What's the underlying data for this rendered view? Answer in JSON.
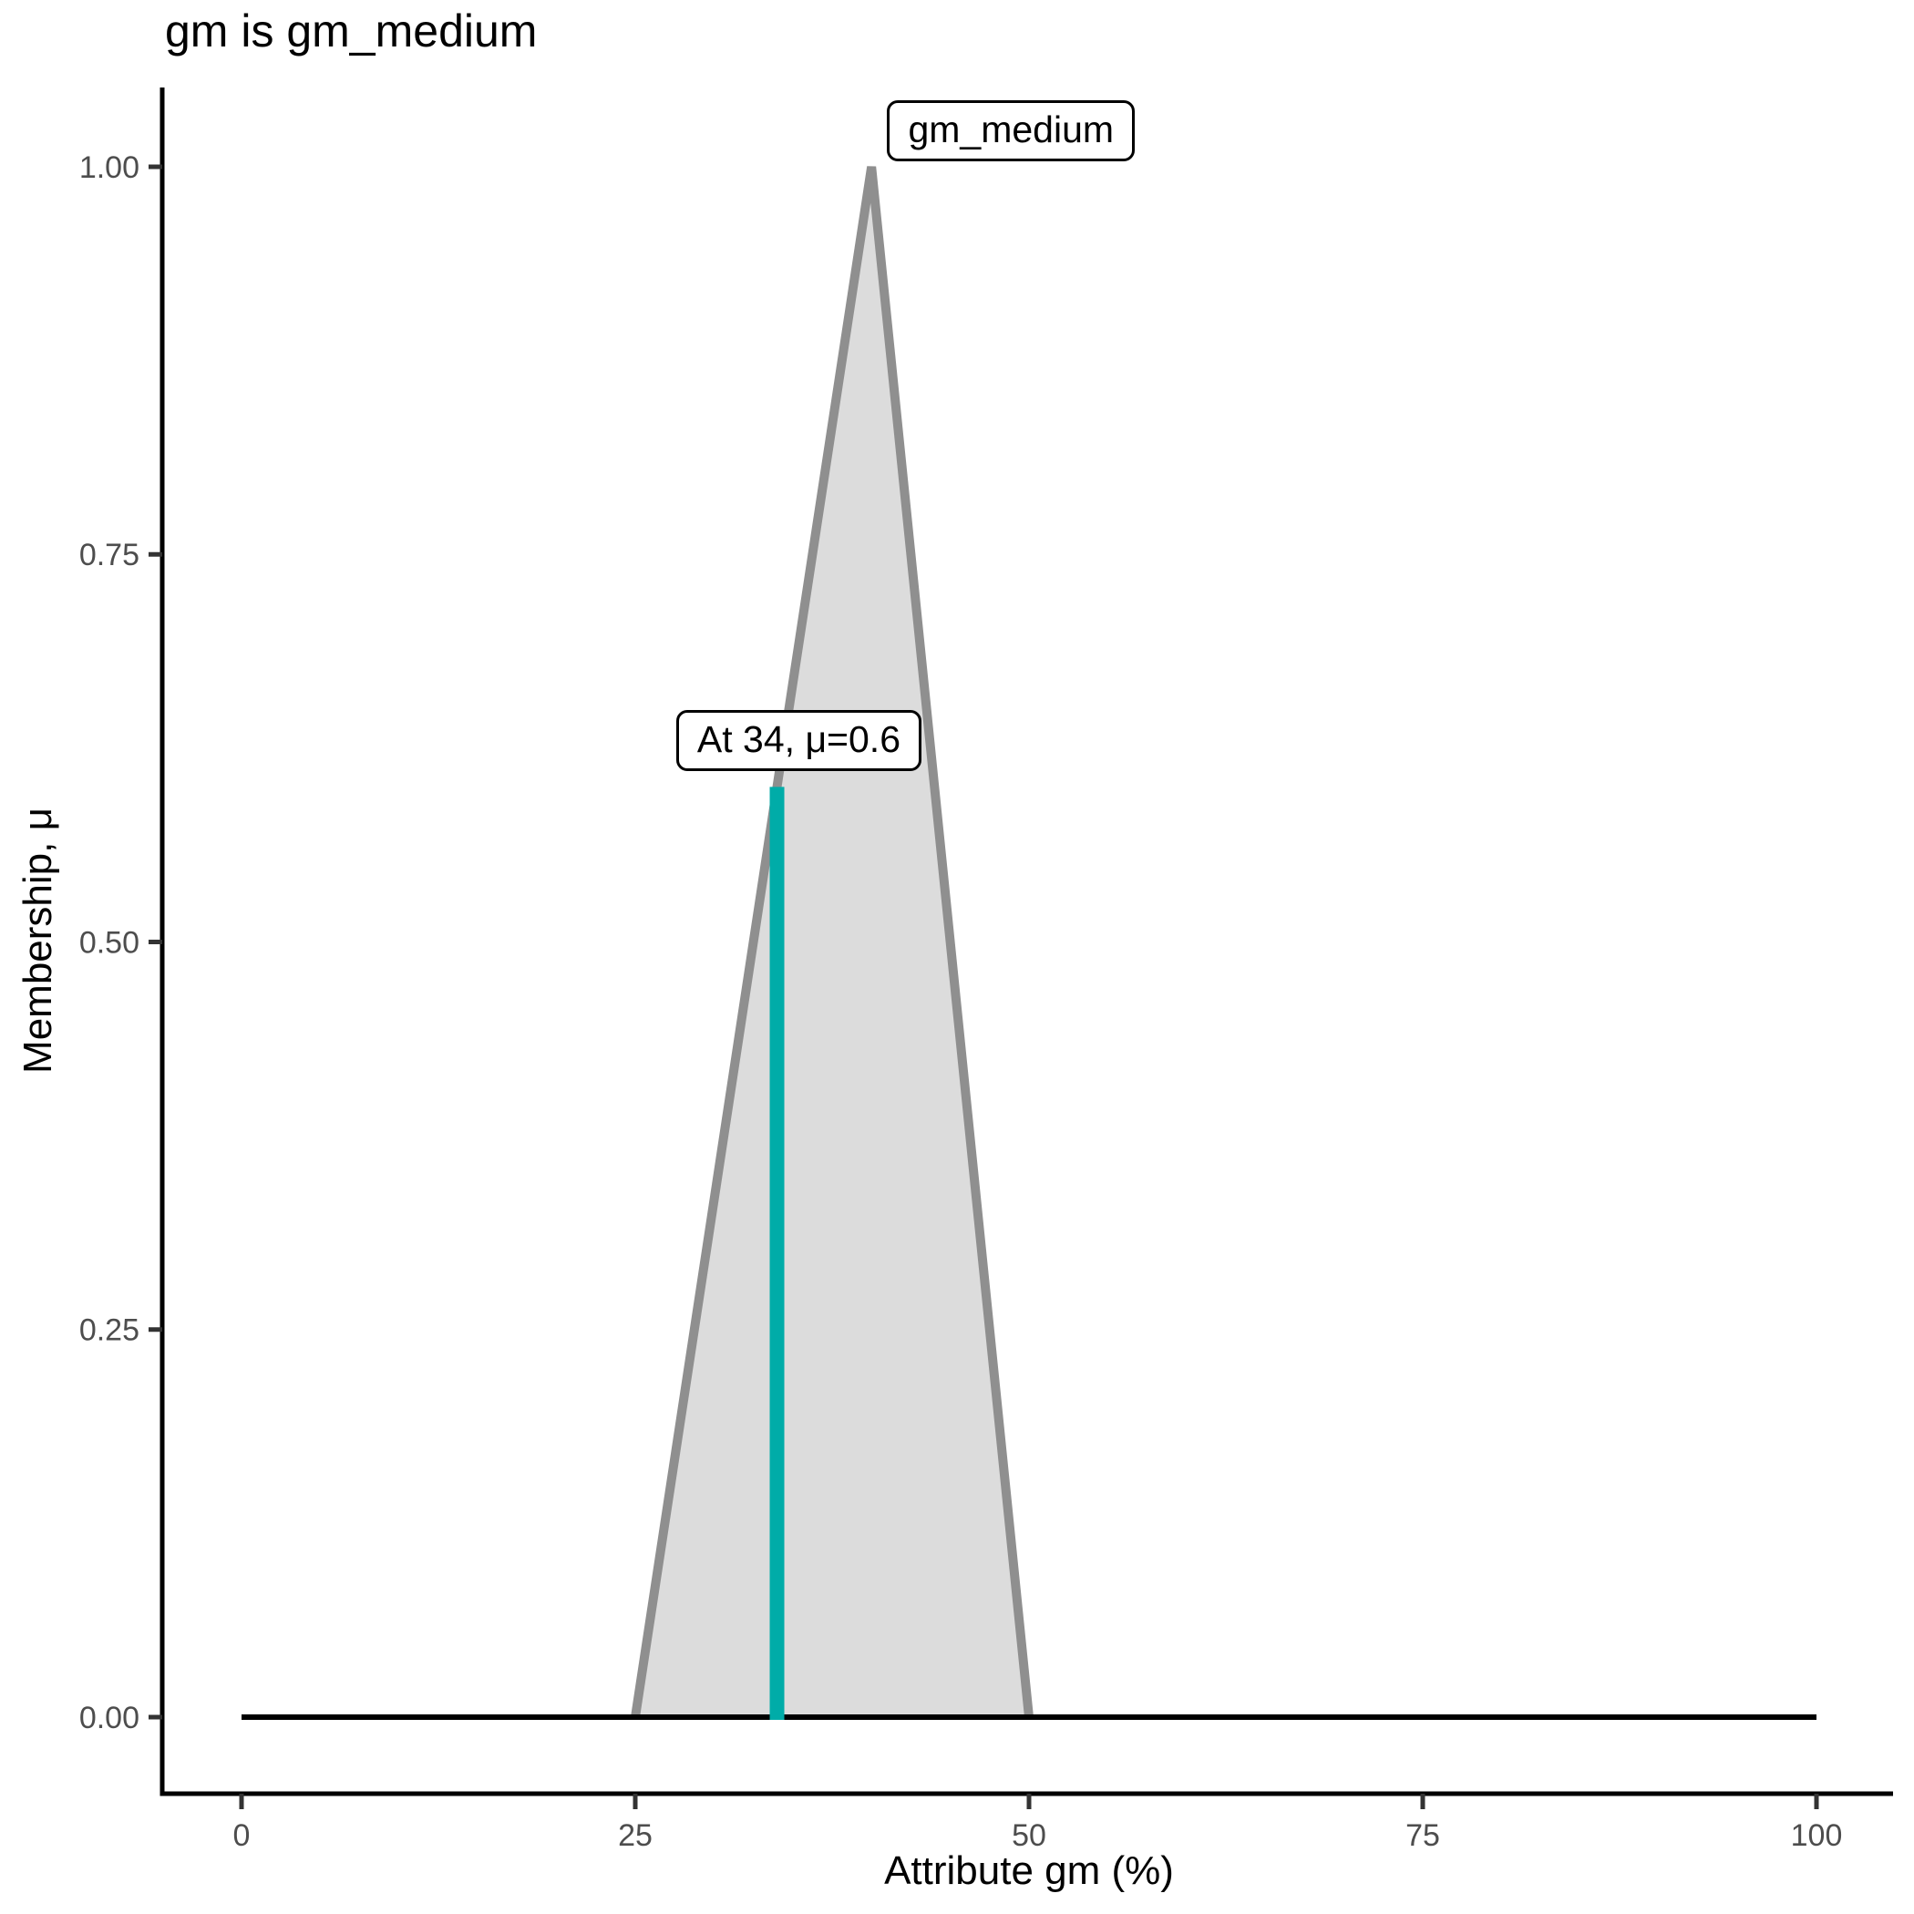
{
  "chart_data": {
    "type": "area",
    "title": "gm is gm_medium",
    "xlabel": "Attribute gm (%)",
    "ylabel": "Membership, μ",
    "xlim": [
      0,
      100
    ],
    "ylim": [
      0,
      1
    ],
    "grid": "off",
    "legend": "none",
    "x_ticks": {
      "values": [
        0,
        25,
        50,
        75,
        100
      ],
      "labels": [
        "0",
        "25",
        "50",
        "75",
        "100"
      ]
    },
    "y_ticks": {
      "values": [
        0,
        0.25,
        0.5,
        0.75,
        1
      ],
      "labels": [
        "0.00",
        "0.25",
        "0.50",
        "0.75",
        "1.00"
      ]
    },
    "membership_function": {
      "name": "gm_medium",
      "shape": "triangle",
      "points": [
        [
          25,
          0
        ],
        [
          40,
          1
        ],
        [
          50,
          0
        ]
      ],
      "support": [
        0,
        100
      ],
      "fill_color": "#DCDCDC",
      "stroke_color": "#8F8F8F"
    },
    "baseline": {
      "x1": 0,
      "x2": 100,
      "y": 0,
      "color": "#000000"
    },
    "crisp_input": {
      "x": 34,
      "mu": 0.6,
      "color": "#00ACA8"
    },
    "annotations": [
      {
        "text": "gm_medium",
        "x": 41.0,
        "y": 1.023,
        "halign": "left"
      },
      {
        "text": "At 34, μ=0.6",
        "x": 27.6,
        "y": 0.63,
        "halign": "left"
      }
    ],
    "colors": {
      "axis_text": "#4D4D4D",
      "tick_mark": "#333333",
      "axis_line": "#000000",
      "title_text": "#000000"
    }
  }
}
